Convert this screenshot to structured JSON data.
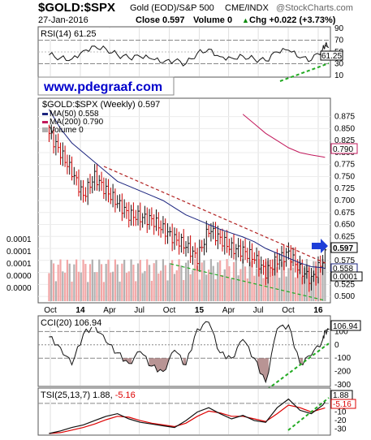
{
  "header": {
    "symbol": "$GOLD:$SPX",
    "description": "Gold (EOD)/S&P 500",
    "exchange": "CME/INDX",
    "brand": "@StockCharts.com",
    "date": "27-Jan-2016",
    "close_text": "Close 0.597",
    "volume_text": "Volume 0",
    "chg_text": "Chg +0.022 (+3.73%)",
    "chg_arrow": "▲"
  },
  "watermark": "www.pdegraaf.com",
  "colors": {
    "price_up": "#111111",
    "price_down": "#cc0000",
    "ma50": "#1a237e",
    "ma200": "#c2185b",
    "vol_up": "#b0b0b0",
    "vol_down": "#f2a6a6",
    "trendline_red": "#b22222",
    "trendline_green": "#22aa22",
    "arrow_blue": "#1e3fd8",
    "tsi_signal": "#dd0000",
    "cci_fill": "#a07070",
    "watermark_text": "#0000cc"
  },
  "chart_data": [
    {
      "type": "line",
      "title": "RSI(14) 61.25",
      "name": "RSI(14)",
      "value_label": "61.25",
      "ylim": [
        10,
        90
      ],
      "yticks": [
        90,
        70,
        50,
        30,
        10
      ],
      "reference_lines": [
        70,
        50,
        30
      ],
      "x_dates": [
        "2013-09-27",
        "2013-11-01",
        "2013-12-06",
        "2014-01-10",
        "2014-02-14",
        "2014-03-21",
        "2014-04-25",
        "2014-05-30",
        "2014-07-04",
        "2014-08-08",
        "2014-09-12",
        "2014-10-17",
        "2014-11-21",
        "2014-12-26",
        "2015-01-30",
        "2015-03-06",
        "2015-04-10",
        "2015-05-15",
        "2015-06-19",
        "2015-07-24",
        "2015-08-28",
        "2015-10-02",
        "2015-11-06",
        "2015-12-11",
        "2016-01-15",
        "2016-01-22"
      ],
      "values": [
        45,
        40,
        38,
        52,
        60,
        55,
        45,
        40,
        42,
        38,
        32,
        35,
        30,
        48,
        55,
        42,
        40,
        43,
        38,
        35,
        50,
        53,
        40,
        36,
        55,
        61.25
      ],
      "grid": true
    },
    {
      "type": "candlestick",
      "title": "$GOLD:$SPX (Weekly) 0.597",
      "ylim": [
        0.49,
        0.91
      ],
      "yticks": [
        0.5,
        0.525,
        0.55,
        0.575,
        0.6,
        0.625,
        0.65,
        0.675,
        0.7,
        0.725,
        0.75,
        0.775,
        0.8,
        0.825,
        0.85,
        0.875
      ],
      "x_tick_labels": [
        "Oct",
        "14",
        "Apr",
        "Jul",
        "Oct",
        "15",
        "Apr",
        "Jul",
        "Oct",
        "16"
      ],
      "x_dates": [
        "2013-09-27",
        "2013-11-01",
        "2013-12-06",
        "2014-01-10",
        "2014-02-14",
        "2014-03-21",
        "2014-04-25",
        "2014-05-30",
        "2014-07-04",
        "2014-08-08",
        "2014-09-12",
        "2014-10-17",
        "2014-11-21",
        "2014-12-26",
        "2015-01-30",
        "2015-03-06",
        "2015-04-10",
        "2015-05-15",
        "2015-06-19",
        "2015-07-24",
        "2015-08-28",
        "2015-10-02",
        "2015-11-06",
        "2015-12-11",
        "2016-01-15",
        "2016-01-22"
      ],
      "close": [
        0.84,
        0.8,
        0.76,
        0.71,
        0.75,
        0.72,
        0.695,
        0.67,
        0.665,
        0.66,
        0.64,
        0.62,
        0.605,
        0.58,
        0.64,
        0.62,
        0.6,
        0.595,
        0.58,
        0.55,
        0.575,
        0.59,
        0.555,
        0.535,
        0.575,
        0.597
      ],
      "series": [
        {
          "name": "MA(50) 0.558",
          "ma_period": 50,
          "last": 0.558,
          "values": [
            0.89,
            0.85,
            0.82,
            0.8,
            0.78,
            0.76,
            0.74,
            0.73,
            0.72,
            0.71,
            0.7,
            0.685,
            0.67,
            0.66,
            0.65,
            0.64,
            0.632,
            0.624,
            0.614,
            0.6,
            0.59,
            0.58,
            0.57,
            0.562,
            0.56,
            0.558
          ]
        },
        {
          "name": "MA(200) 0.790",
          "ma_period": 200,
          "last": 0.79,
          "values": [
            null,
            null,
            null,
            null,
            null,
            null,
            null,
            null,
            null,
            null,
            null,
            null,
            null,
            null,
            null,
            null,
            null,
            0.88,
            0.86,
            0.84,
            0.825,
            0.81,
            0.8,
            0.795,
            0.791,
            0.79
          ]
        },
        {
          "name": "Volume 0",
          "values": []
        }
      ],
      "price_tags": [
        "0.597",
        "0.790",
        "0.558",
        "0.0001"
      ],
      "volume_axis_labels": [
        "0.0001",
        "0.0001",
        "0.0001",
        "0.0000",
        "0.0000"
      ],
      "trendlines": [
        "descending resistance (red dashed)",
        "ascending support (green dashed)"
      ],
      "grid": true
    },
    {
      "type": "line",
      "title": "CCI(20) 106.94",
      "name": "CCI(20)",
      "value_label": "106.94",
      "ylim": [
        -300,
        200
      ],
      "yticks": [
        100,
        0,
        -100,
        -200,
        -300
      ],
      "reference_lines": [
        100,
        0,
        -100
      ],
      "x_dates": [
        "2013-09-27",
        "2013-11-01",
        "2013-12-06",
        "2014-01-10",
        "2014-02-14",
        "2014-03-21",
        "2014-04-25",
        "2014-05-30",
        "2014-07-04",
        "2014-08-08",
        "2014-09-12",
        "2014-10-17",
        "2014-11-21",
        "2014-12-26",
        "2015-01-30",
        "2015-03-06",
        "2015-04-10",
        "2015-05-15",
        "2015-06-19",
        "2015-07-24",
        "2015-08-28",
        "2015-10-02",
        "2015-11-06",
        "2015-12-11",
        "2016-01-15",
        "2016-01-22"
      ],
      "values": [
        60,
        -20,
        -150,
        80,
        150,
        20,
        -60,
        -140,
        -50,
        -160,
        -200,
        -40,
        -150,
        120,
        170,
        -60,
        -100,
        40,
        -100,
        -280,
        120,
        150,
        -140,
        -80,
        40,
        106.94
      ],
      "grid": true
    },
    {
      "type": "line",
      "title": "TSI(25,13,7) 1.88, -5.16",
      "name": "TSI(25,13,7)",
      "value_labels": [
        "1.88",
        "-5.16"
      ],
      "ylim": [
        -35,
        15
      ],
      "yticks": [
        10,
        0,
        -10,
        -20,
        -30
      ],
      "reference_lines": [
        0
      ],
      "x_dates": [
        "2013-09-27",
        "2013-11-01",
        "2013-12-06",
        "2014-01-10",
        "2014-02-14",
        "2014-03-21",
        "2014-04-25",
        "2014-05-30",
        "2014-07-04",
        "2014-08-08",
        "2014-09-12",
        "2014-10-17",
        "2014-11-21",
        "2014-12-26",
        "2015-01-30",
        "2015-03-06",
        "2015-04-10",
        "2015-05-15",
        "2015-06-19",
        "2015-07-24",
        "2015-08-28",
        "2015-10-02",
        "2015-11-06",
        "2015-12-11",
        "2016-01-15",
        "2016-01-22"
      ],
      "series": [
        {
          "name": "TSI",
          "values": [
            -35,
            -32,
            -28,
            -25,
            -20,
            -15,
            -12,
            -18,
            -22,
            -24,
            -26,
            -28,
            -20,
            -10,
            -5,
            -12,
            -18,
            -14,
            -20,
            -22,
            -5,
            5,
            -8,
            -12,
            -2,
            1.88
          ]
        },
        {
          "name": "Signal",
          "values": [
            -35,
            -34,
            -31,
            -28,
            -24,
            -19,
            -15,
            -16,
            -20,
            -23,
            -25,
            -27,
            -23,
            -15,
            -9,
            -11,
            -15,
            -15,
            -18,
            -21,
            -12,
            -2,
            -5,
            -10,
            -6,
            -5.16
          ]
        }
      ],
      "grid": true
    }
  ]
}
